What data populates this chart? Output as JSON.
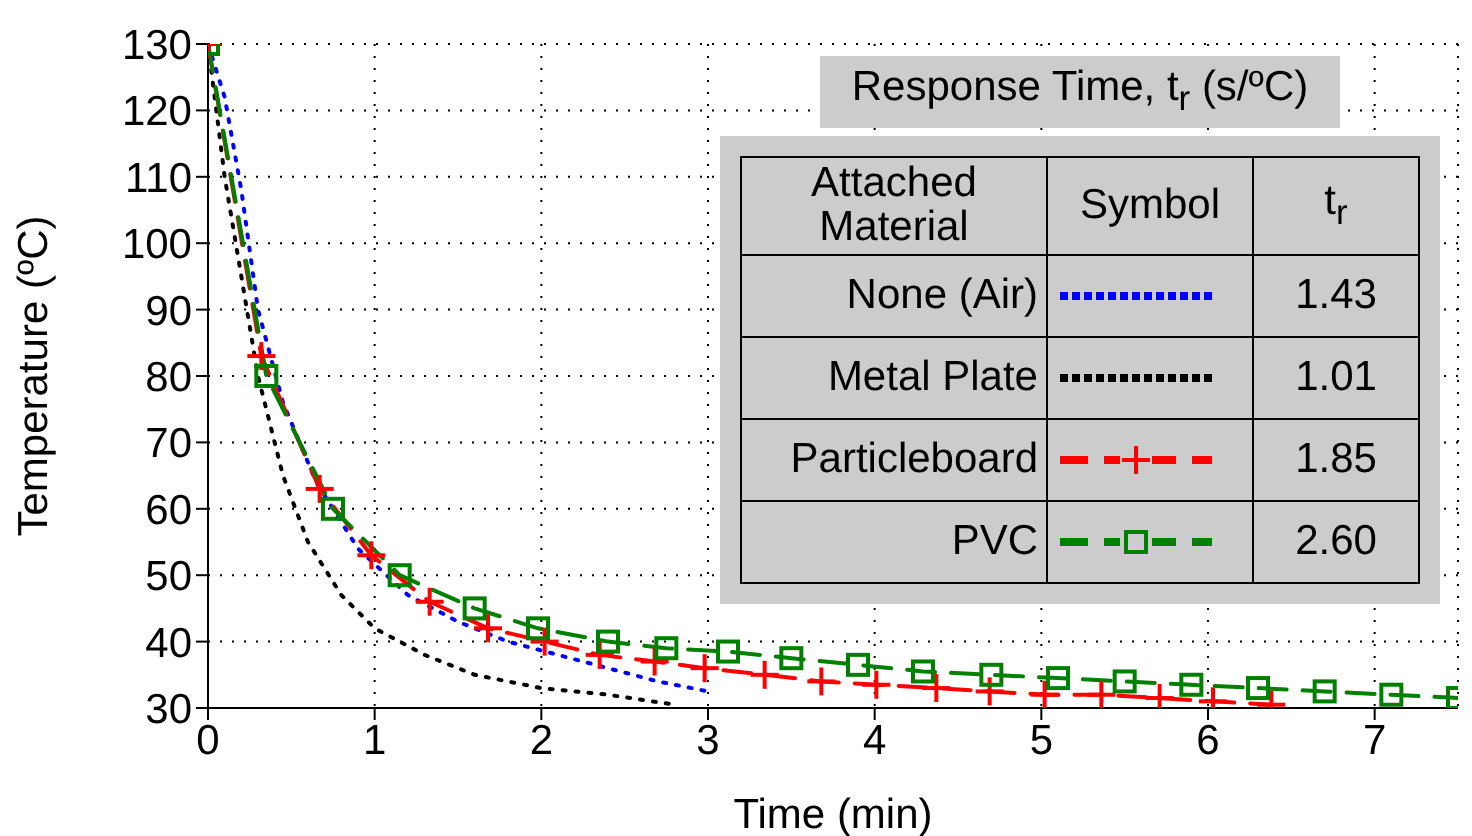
{
  "chart_data": {
    "type": "line",
    "xlabel": "Time (min)",
    "ylabel": "Temperature (ºC)",
    "legend_title": "Response Time, t$_{r}$ (s/ºC)",
    "annotations": [
      "Attached Material",
      "Symbol",
      "t$_{r}$",
      "1.43",
      "1.01",
      "1.85",
      "2.60"
    ],
    "xlim": [
      0,
      7.5
    ],
    "xticks": [
      0,
      1,
      2,
      3,
      4,
      5,
      6,
      7
    ],
    "ylim": [
      30,
      130
    ],
    "yticks": [
      30,
      40,
      50,
      60,
      70,
      80,
      90,
      100,
      110,
      120,
      130
    ],
    "grid": true,
    "legend": "right",
    "series": [
      {
        "name": "None (Air)",
        "color": "#0000ff",
        "line_style": "dotted",
        "marker": "none",
        "x": [
          0,
          0.1,
          0.2,
          0.3,
          0.45,
          0.65,
          0.9,
          1.2,
          1.5,
          1.8,
          2.1,
          2.4,
          2.7,
          3.0
        ],
        "values": [
          130,
          122,
          108,
          90,
          76,
          64,
          54,
          47,
          43,
          40,
          38,
          36,
          34,
          32.5
        ]
      },
      {
        "name": "Metal Plate",
        "color": "#000000",
        "line_style": "dotted",
        "marker": "none",
        "x": [
          0,
          0.1,
          0.2,
          0.3,
          0.45,
          0.6,
          0.8,
          1.0,
          1.3,
          1.6,
          2.0,
          2.4,
          2.8
        ],
        "values": [
          130,
          110,
          95,
          80,
          65,
          55,
          47,
          42,
          38,
          35,
          33,
          32,
          30.5
        ]
      },
      {
        "name": "Particleboard",
        "color": "#ff0000",
        "line_style": "dashed",
        "marker": "cross",
        "x": [
          0,
          0.32,
          0.67,
          0.98,
          1.33,
          1.68,
          2.02,
          2.35,
          2.68,
          2.98,
          3.34,
          3.68,
          4.01,
          4.37,
          4.69,
          5.02,
          5.36,
          5.71,
          6.03,
          6.38
        ],
        "values": [
          130,
          83,
          63,
          53,
          46,
          42,
          40,
          38,
          37,
          36,
          35,
          34,
          33.5,
          33,
          32.5,
          32,
          32,
          31.5,
          31,
          30.5
        ]
      },
      {
        "name": "PVC",
        "color": "#008000",
        "line_style": "dashed",
        "marker": "square",
        "x": [
          0,
          0.35,
          0.75,
          1.15,
          1.6,
          1.98,
          2.4,
          2.75,
          3.12,
          3.5,
          3.9,
          4.29,
          4.7,
          5.1,
          5.5,
          5.9,
          6.3,
          6.7,
          7.1,
          7.5
        ],
        "values": [
          130,
          80,
          60,
          50,
          45,
          42,
          40,
          39,
          38.5,
          37.5,
          36.5,
          35.5,
          35,
          34.5,
          34,
          33.5,
          33,
          32.5,
          32,
          31.5
        ]
      }
    ]
  }
}
